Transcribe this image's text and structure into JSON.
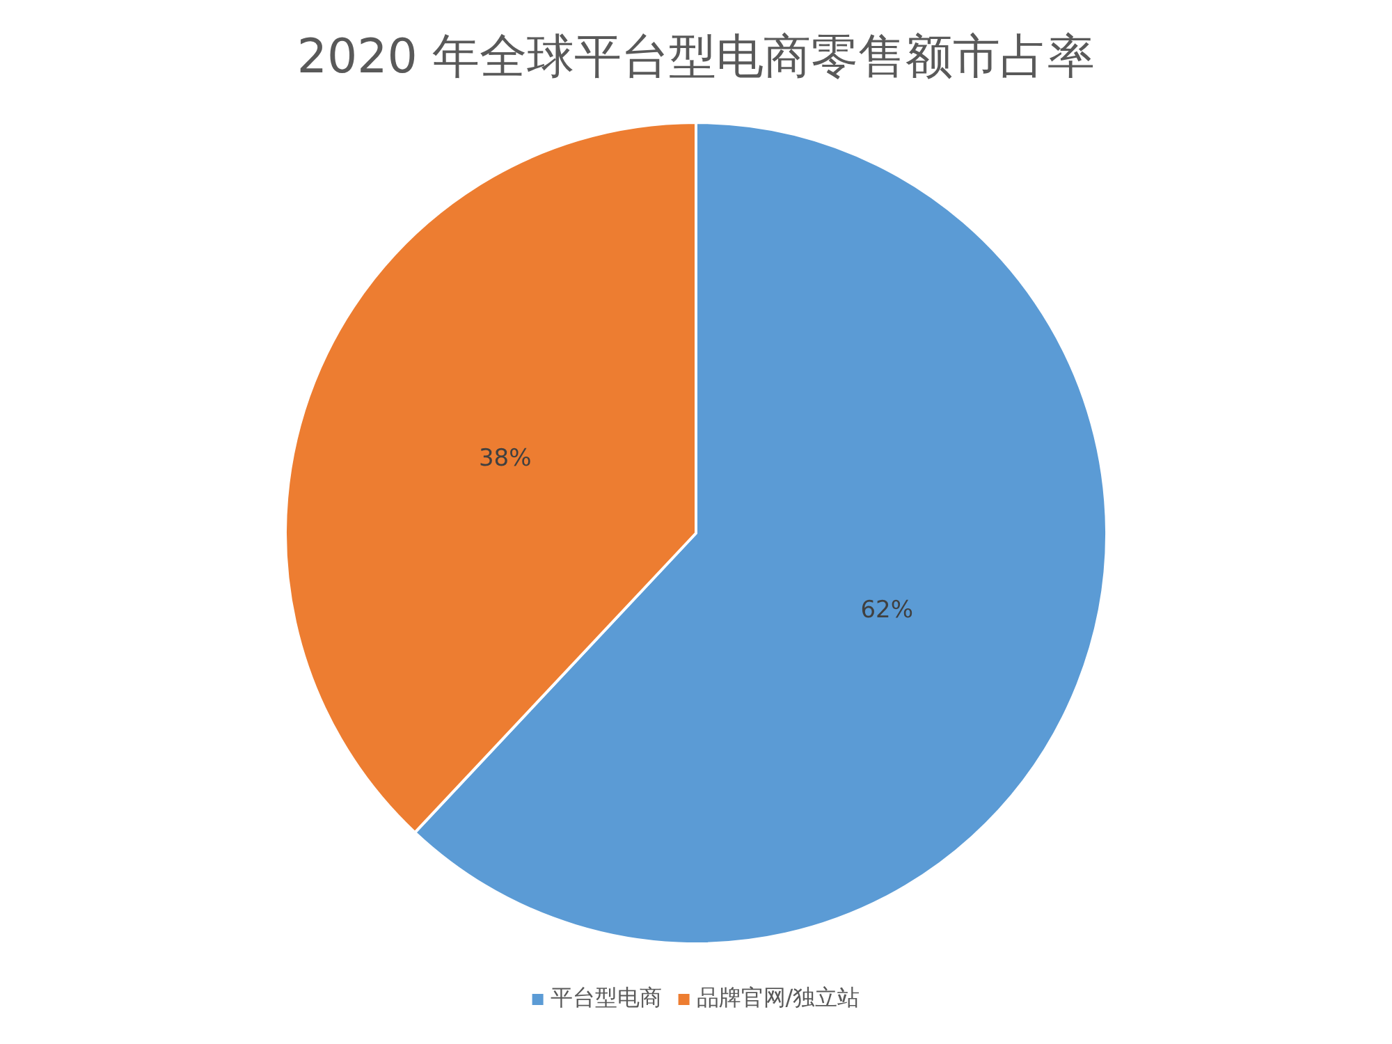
{
  "chart_data": {
    "type": "pie",
    "title": "2020 年全球平台型电商零售额市占率",
    "categories": [
      "平台型电商",
      "品牌官网/独立站"
    ],
    "values": [
      62,
      38
    ],
    "colors": [
      "#5b9bd5",
      "#ed7d31"
    ],
    "value_labels": [
      "62%",
      "38%"
    ],
    "legend": "bottom"
  }
}
